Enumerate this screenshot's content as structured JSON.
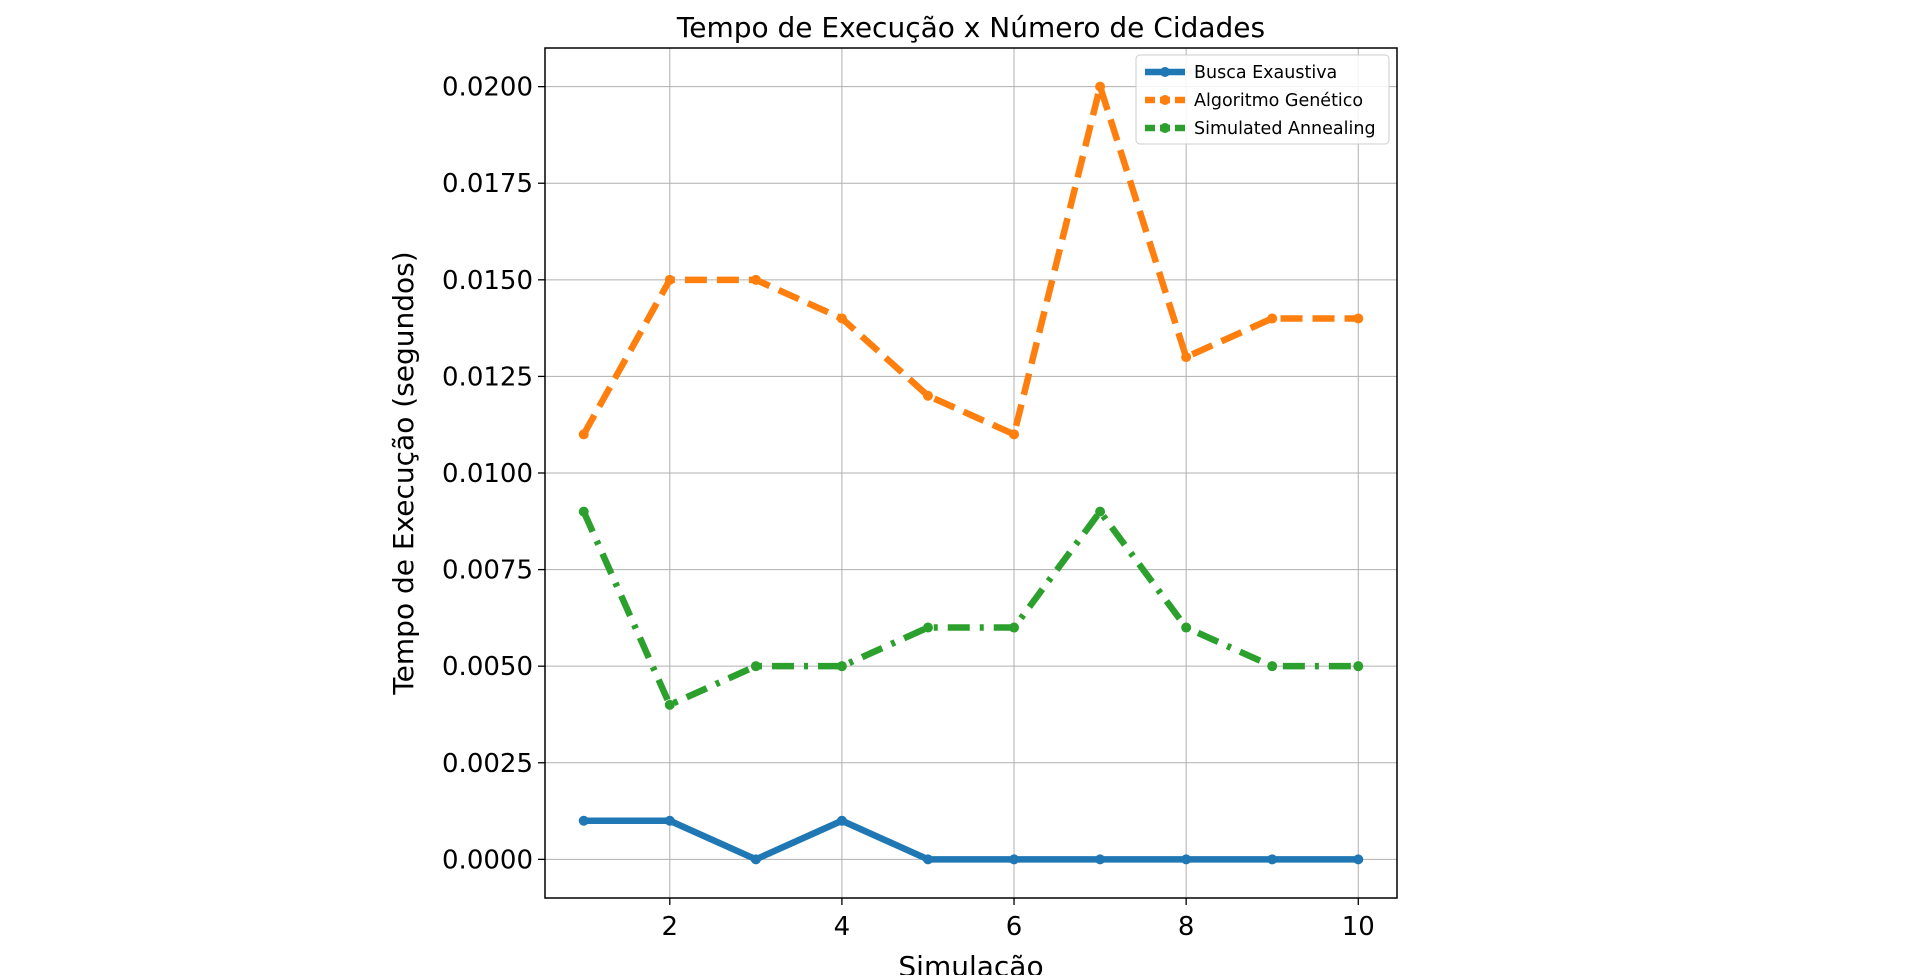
{
  "chart_data": {
    "type": "line",
    "title": "Tempo de Execução x Número de Cidades",
    "xlabel": "Simulação",
    "ylabel": "Tempo de Execução (segundos)",
    "x": [
      1,
      2,
      3,
      4,
      5,
      6,
      7,
      8,
      9,
      10
    ],
    "xlim": [
      0.55,
      10.45
    ],
    "ylim": [
      -0.001,
      0.021
    ],
    "xticks": [
      2,
      4,
      6,
      8,
      10
    ],
    "xtick_labels": [
      "2",
      "4",
      "6",
      "8",
      "10"
    ],
    "yticks": [
      0,
      0.0025,
      0.005,
      0.0075,
      0.01,
      0.0125,
      0.015,
      0.0175,
      0.02
    ],
    "ytick_labels": [
      "0.0000",
      "0.0025",
      "0.0050",
      "0.0075",
      "0.0100",
      "0.0125",
      "0.0150",
      "0.0175",
      "0.0200"
    ],
    "grid": true,
    "legend_position": "top-right",
    "series": [
      {
        "name": "Busca Exaustiva",
        "color": "#1f77b4",
        "linestyle": "solid",
        "values": [
          0.001,
          0.001,
          0,
          0.001,
          0,
          0,
          0,
          0,
          0,
          0
        ]
      },
      {
        "name": "Algoritmo Genético",
        "color": "#ff7f0e",
        "linestyle": "dashed",
        "values": [
          0.011,
          0.015,
          0.015,
          0.014,
          0.012,
          0.011,
          0.02,
          0.013,
          0.014,
          0.014
        ]
      },
      {
        "name": "Simulated Annealing",
        "color": "#2ca02c",
        "linestyle": "dashdot",
        "values": [
          0.009,
          0.004,
          0.005,
          0.005,
          0.006,
          0.006,
          0.009,
          0.006,
          0.005,
          0.005
        ]
      }
    ]
  }
}
